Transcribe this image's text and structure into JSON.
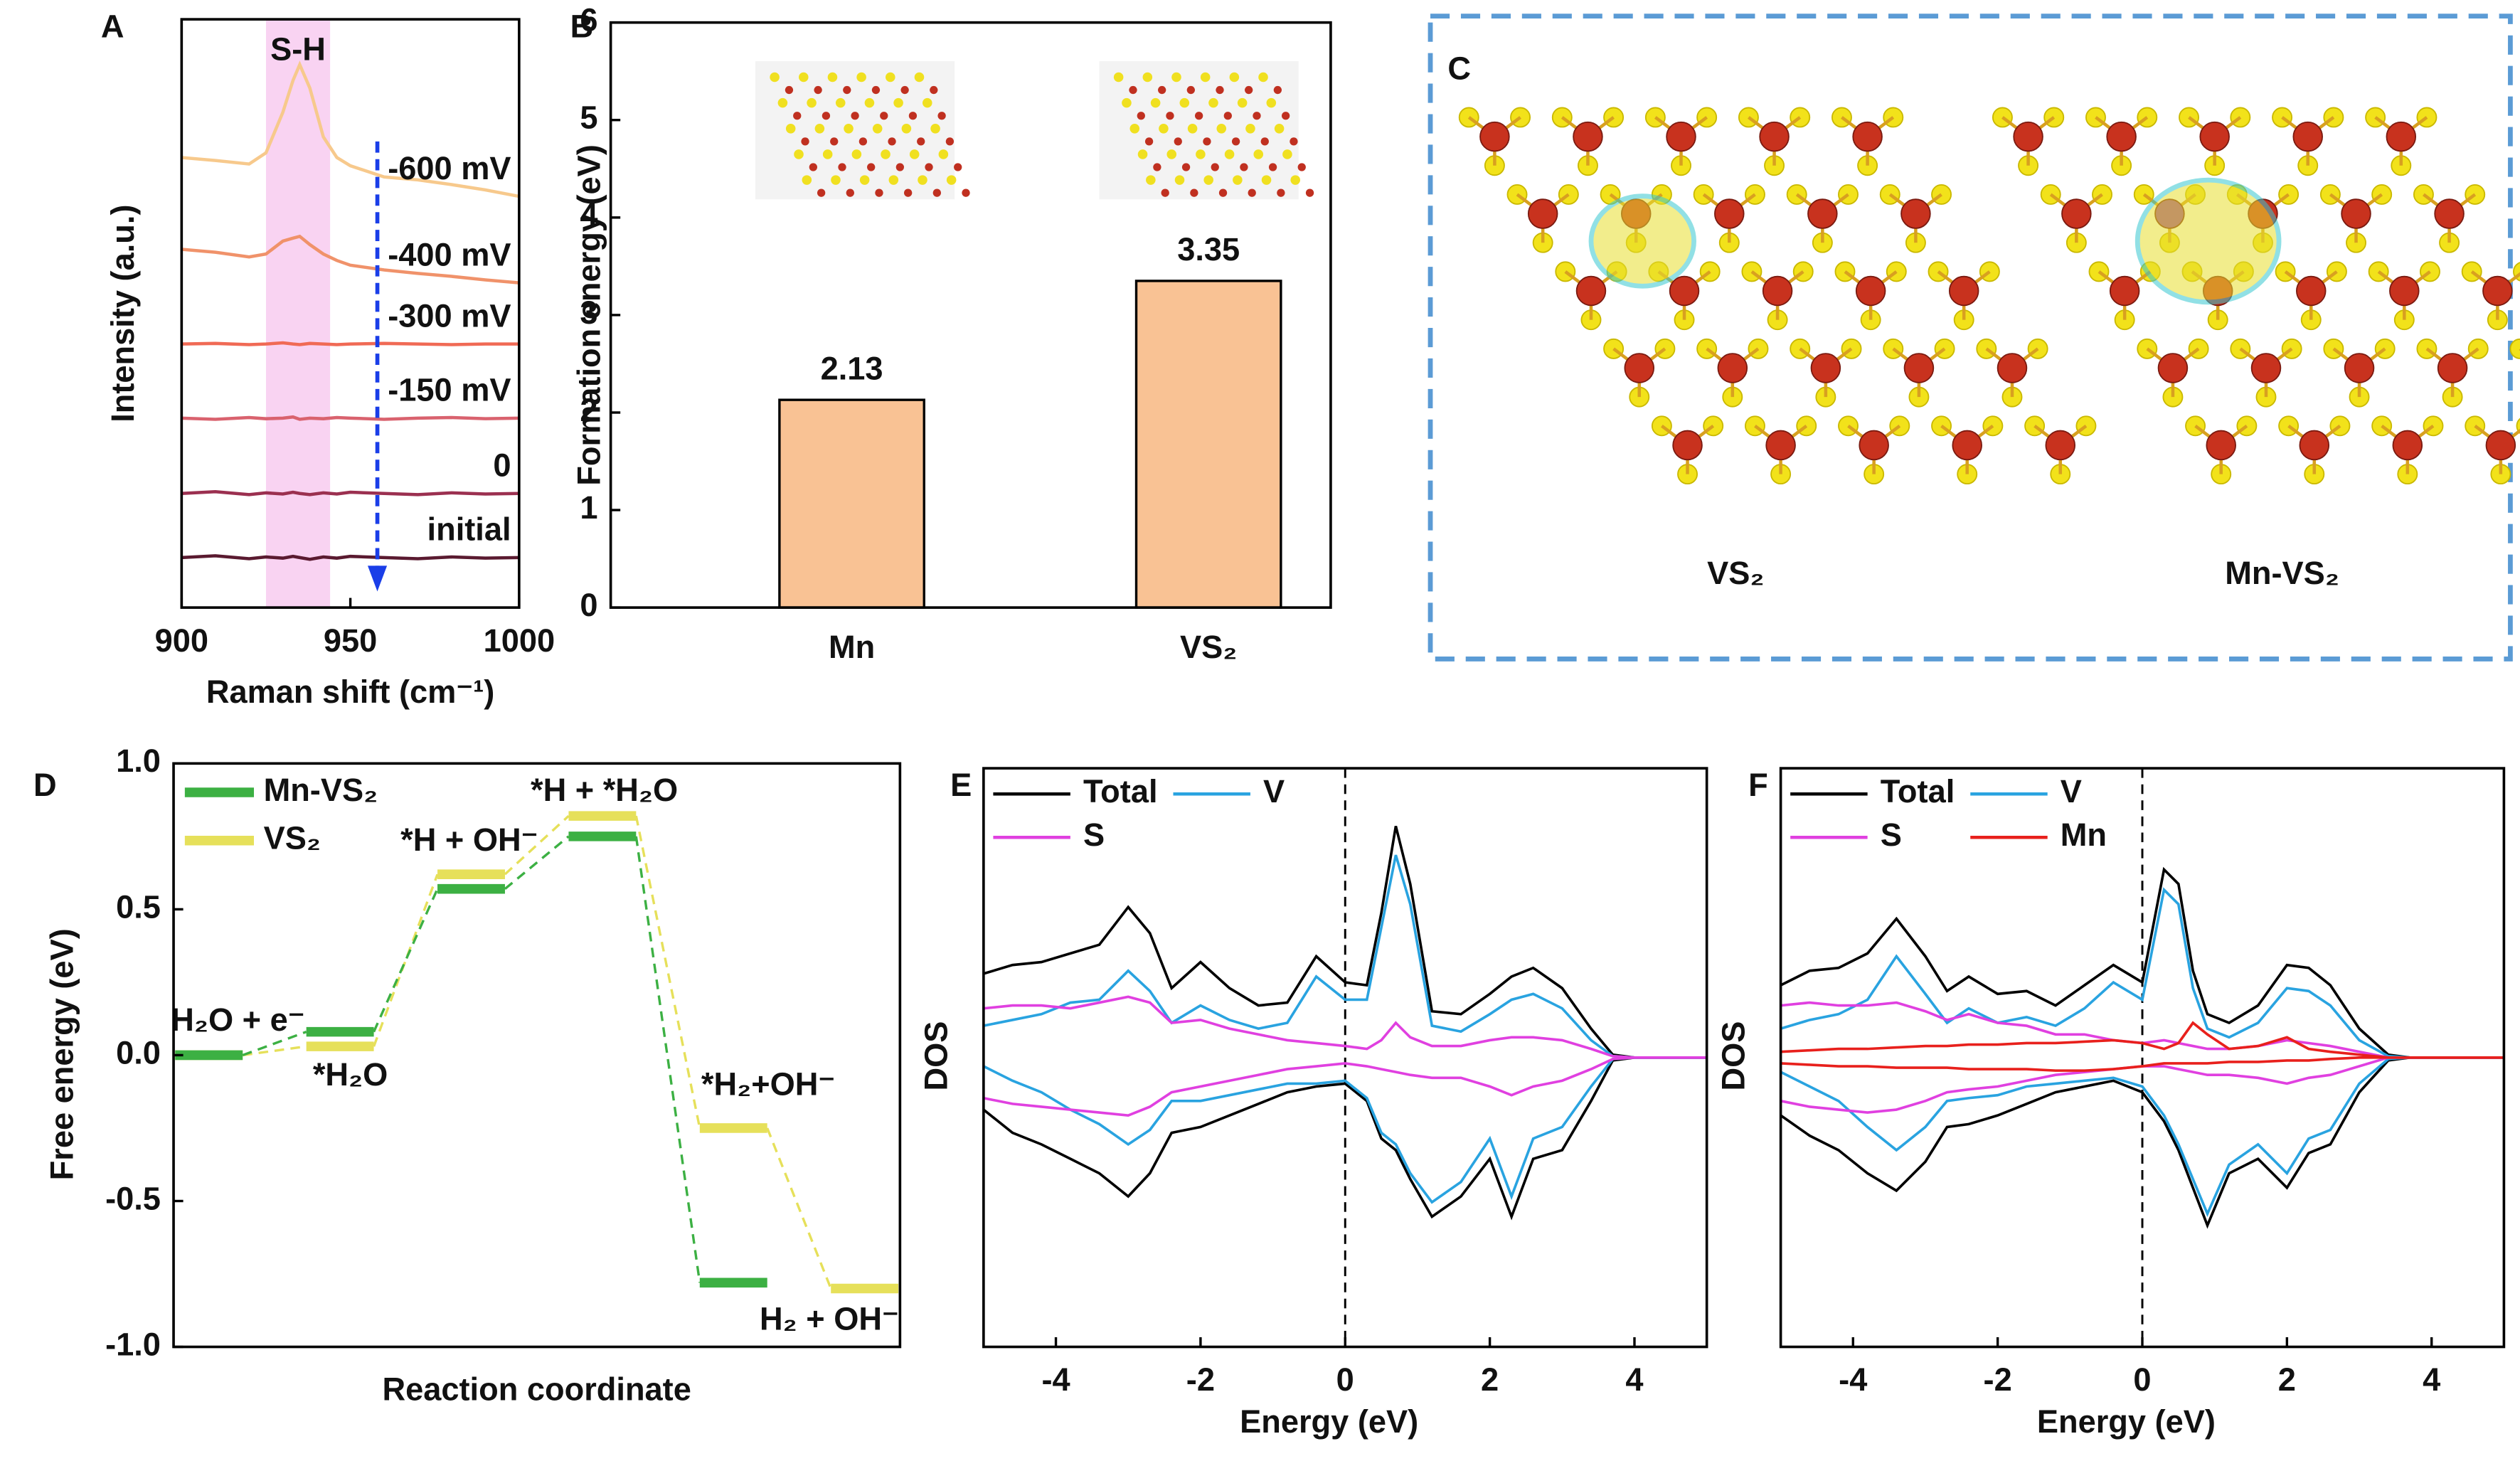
{
  "chart_data": [
    {
      "type": "line",
      "panel_label": "A",
      "xlabel": "Raman shift (cm⁻¹)",
      "ylabel": "Intensity (a.u.)",
      "annotation": "S-H",
      "highlight": [
        925,
        944
      ],
      "arrow_x": 958,
      "xlim": [
        900,
        1000
      ],
      "xticks": [
        900,
        950,
        1000
      ],
      "ylim": [
        0,
        10
      ],
      "x": [
        900,
        910,
        920,
        925,
        930,
        933,
        935,
        938,
        942,
        946,
        950,
        960,
        970,
        980,
        990,
        1000
      ],
      "series": [
        {
          "name": "-600 mV",
          "color": "#f7c98c",
          "values": [
            7.65,
            7.6,
            7.54,
            7.73,
            8.42,
            8.96,
            9.23,
            8.83,
            8.0,
            7.65,
            7.51,
            7.32,
            7.27,
            7.19,
            7.1,
            6.99
          ]
        },
        {
          "name": "-400 mV",
          "color": "#f0926a",
          "values": [
            6.09,
            6.04,
            5.96,
            6.01,
            6.23,
            6.28,
            6.31,
            6.17,
            6.01,
            5.9,
            5.82,
            5.74,
            5.68,
            5.63,
            5.57,
            5.52
          ]
        },
        {
          "name": "-300 mV",
          "color": "#f06a55",
          "values": [
            4.48,
            4.49,
            4.47,
            4.48,
            4.5,
            4.48,
            4.47,
            4.49,
            4.48,
            4.47,
            4.48,
            4.49,
            4.48,
            4.47,
            4.48,
            4.48
          ]
        },
        {
          "name": "-150 mV",
          "color": "#d9626e",
          "values": [
            3.22,
            3.2,
            3.23,
            3.21,
            3.22,
            3.24,
            3.2,
            3.22,
            3.21,
            3.23,
            3.22,
            3.2,
            3.22,
            3.23,
            3.21,
            3.22
          ]
        },
        {
          "name": "0",
          "color": "#9b3050",
          "values": [
            1.94,
            1.97,
            1.92,
            1.95,
            1.93,
            1.96,
            1.94,
            1.92,
            1.95,
            1.93,
            1.96,
            1.94,
            1.92,
            1.95,
            1.93,
            1.94
          ]
        },
        {
          "name": "initial",
          "color": "#5a1a30",
          "values": [
            0.85,
            0.88,
            0.83,
            0.86,
            0.84,
            0.87,
            0.85,
            0.82,
            0.86,
            0.84,
            0.87,
            0.85,
            0.83,
            0.86,
            0.84,
            0.85
          ]
        }
      ]
    },
    {
      "type": "bar",
      "panel_label": "B",
      "ylabel": "Formation energy (eV)",
      "categories": [
        "Mn",
        "VS₂"
      ],
      "values": [
        2.13,
        3.35
      ],
      "color": "#f9c294",
      "ylim": [
        0,
        6
      ],
      "yticks": [
        0,
        1,
        2,
        3,
        4,
        5,
        6
      ]
    },
    {
      "type": "energy",
      "panel_label": "D",
      "xlabel": "Reaction coordinate",
      "ylabel": "Free energy (eV)",
      "categories": [
        "H₂O + e⁻",
        "*H₂O",
        "*H + OH⁻",
        "*H + *H₂O",
        "*H₂+OH⁻",
        "H₂ + OH⁻"
      ],
      "ylim": [
        -1,
        1
      ],
      "yticks": [
        {
          "value": -1,
          "label": "-1.0"
        },
        -0.5,
        {
          "value": 0,
          "label": "0.0"
        },
        0.5,
        {
          "value": 1,
          "label": "1.0"
        }
      ],
      "series": [
        {
          "name": "Mn-VS₂",
          "color": "#3cb043",
          "values": [
            0,
            0.08,
            0.57,
            0.75,
            -0.78,
            null
          ]
        },
        {
          "name": "VS₂",
          "color": "#e6e05a",
          "values": [
            0,
            0.03,
            0.62,
            0.82,
            -0.25,
            -0.8
          ]
        }
      ]
    },
    {
      "type": "dos",
      "panel_label": "E",
      "xlabel": "Energy (eV)",
      "ylabel": "DOS",
      "vline": 0,
      "xlim": [
        -5,
        5
      ],
      "xticks": [
        -4,
        -2,
        0,
        2,
        4
      ],
      "ylim": [
        -10,
        10
      ],
      "x": [
        -5,
        -4.6,
        -4.2,
        -3.8,
        -3.4,
        -3,
        -2.7,
        -2.4,
        -2,
        -1.6,
        -1.2,
        -0.8,
        -0.4,
        0,
        0.3,
        0.5,
        0.7,
        0.9,
        1.2,
        1.6,
        2,
        2.3,
        2.6,
        3,
        3.4,
        3.7,
        4,
        5
      ],
      "series": [
        {
          "name": "Total",
          "color": "#000000",
          "values": [
            2.9,
            3.2,
            3.3,
            3.6,
            3.9,
            5.2,
            4.3,
            2.4,
            3.3,
            2.4,
            1.8,
            1.9,
            3.5,
            2.6,
            2.5,
            5.0,
            8.0,
            6.0,
            1.6,
            1.5,
            2.2,
            2.8,
            3.1,
            2.4,
            1.0,
            0.1,
            0,
            0
          ],
          "values_down": [
            -1.8,
            -2.6,
            -3.0,
            -3.5,
            -4.0,
            -4.8,
            -4.0,
            -2.6,
            -2.4,
            -2.0,
            -1.6,
            -1.2,
            -1.0,
            -0.9,
            -1.5,
            -2.8,
            -3.2,
            -4.2,
            -5.5,
            -4.8,
            -3.5,
            -5.5,
            -3.5,
            -3.2,
            -1.5,
            -0.1,
            0,
            0
          ]
        },
        {
          "name": "V",
          "color": "#29a3e0",
          "values": [
            1.1,
            1.3,
            1.5,
            1.9,
            2.0,
            3.0,
            2.3,
            1.2,
            1.8,
            1.3,
            1.0,
            1.2,
            2.8,
            2.0,
            2.0,
            4.5,
            7.0,
            5.3,
            1.1,
            0.9,
            1.5,
            2.0,
            2.2,
            1.7,
            0.6,
            0.05,
            0,
            0
          ],
          "values_down": [
            -0.3,
            -0.8,
            -1.2,
            -1.8,
            -2.3,
            -3.0,
            -2.5,
            -1.5,
            -1.5,
            -1.3,
            -1.1,
            -0.9,
            -0.9,
            -0.8,
            -1.4,
            -2.6,
            -3.0,
            -4.0,
            -5.0,
            -4.3,
            -2.8,
            -4.8,
            -2.8,
            -2.4,
            -1.0,
            -0.05,
            0,
            0
          ]
        },
        {
          "name": "S",
          "color": "#e040e0",
          "values": [
            1.7,
            1.8,
            1.8,
            1.7,
            1.9,
            2.1,
            1.9,
            1.2,
            1.3,
            1.0,
            0.8,
            0.6,
            0.5,
            0.4,
            0.3,
            0.6,
            1.2,
            0.7,
            0.4,
            0.4,
            0.6,
            0.7,
            0.7,
            0.6,
            0.3,
            0.05,
            0,
            0
          ],
          "values_down": [
            -1.4,
            -1.6,
            -1.7,
            -1.8,
            -1.9,
            -2.0,
            -1.7,
            -1.2,
            -1.0,
            -0.8,
            -0.6,
            -0.4,
            -0.3,
            -0.2,
            -0.3,
            -0.4,
            -0.5,
            -0.6,
            -0.7,
            -0.7,
            -1.0,
            -1.3,
            -1.0,
            -0.8,
            -0.4,
            -0.05,
            0,
            0
          ]
        }
      ]
    },
    {
      "type": "dos",
      "panel_label": "F",
      "xlabel": "Energy (eV)",
      "ylabel": "DOS",
      "vline": 0,
      "xlim": [
        -5,
        5
      ],
      "xticks": [
        -4,
        -2,
        0,
        2,
        4
      ],
      "ylim": [
        -10,
        10
      ],
      "x": [
        -5,
        -4.6,
        -4.2,
        -3.8,
        -3.4,
        -3,
        -2.7,
        -2.4,
        -2,
        -1.6,
        -1.2,
        -0.8,
        -0.4,
        0,
        0.3,
        0.5,
        0.7,
        0.9,
        1.2,
        1.6,
        2,
        2.3,
        2.6,
        3,
        3.4,
        3.7,
        4,
        5
      ],
      "series": [
        {
          "name": "Total",
          "color": "#000000",
          "values": [
            2.5,
            3.0,
            3.1,
            3.6,
            4.8,
            3.5,
            2.3,
            2.8,
            2.2,
            2.3,
            1.8,
            2.5,
            3.2,
            2.6,
            6.5,
            6.0,
            3.0,
            1.5,
            1.2,
            1.8,
            3.2,
            3.1,
            2.5,
            1.0,
            0.1,
            0,
            0,
            0
          ],
          "values_down": [
            -2.0,
            -2.7,
            -3.2,
            -4.0,
            -4.6,
            -3.6,
            -2.4,
            -2.3,
            -2.0,
            -1.6,
            -1.2,
            -1.0,
            -0.8,
            -1.2,
            -2.2,
            -3.2,
            -4.5,
            -5.8,
            -4.0,
            -3.5,
            -4.5,
            -3.3,
            -3.0,
            -1.2,
            -0.1,
            0,
            0,
            0
          ]
        },
        {
          "name": "V",
          "color": "#29a3e0",
          "values": [
            1.0,
            1.3,
            1.5,
            2.0,
            3.5,
            2.2,
            1.2,
            1.7,
            1.2,
            1.4,
            1.1,
            1.7,
            2.6,
            2.0,
            5.8,
            5.3,
            2.4,
            1.0,
            0.7,
            1.2,
            2.4,
            2.3,
            1.8,
            0.6,
            0.05,
            0,
            0,
            0
          ],
          "values_down": [
            -0.5,
            -1.0,
            -1.5,
            -2.4,
            -3.2,
            -2.4,
            -1.5,
            -1.4,
            -1.3,
            -1.0,
            -0.9,
            -0.8,
            -0.7,
            -1.0,
            -2.0,
            -3.0,
            -4.2,
            -5.4,
            -3.7,
            -3.0,
            -4.0,
            -2.8,
            -2.5,
            -0.9,
            -0.05,
            0,
            0,
            0
          ]
        },
        {
          "name": "S",
          "color": "#e040e0",
          "values": [
            1.8,
            1.9,
            1.8,
            1.8,
            1.9,
            1.6,
            1.3,
            1.5,
            1.2,
            1.1,
            0.8,
            0.8,
            0.6,
            0.5,
            0.6,
            0.5,
            0.4,
            0.3,
            0.3,
            0.4,
            0.6,
            0.5,
            0.4,
            0.2,
            0,
            0,
            0,
            0
          ],
          "values_down": [
            -1.5,
            -1.7,
            -1.8,
            -1.9,
            -1.8,
            -1.5,
            -1.2,
            -1.1,
            -1.0,
            -0.8,
            -0.6,
            -0.5,
            -0.4,
            -0.3,
            -0.3,
            -0.4,
            -0.5,
            -0.6,
            -0.6,
            -0.7,
            -0.9,
            -0.7,
            -0.6,
            -0.3,
            0,
            0,
            0,
            0
          ]
        },
        {
          "name": "Mn",
          "color": "#e8201c",
          "values": [
            0.2,
            0.25,
            0.3,
            0.3,
            0.35,
            0.4,
            0.4,
            0.45,
            0.45,
            0.5,
            0.5,
            0.55,
            0.6,
            0.5,
            0.3,
            0.5,
            1.2,
            0.8,
            0.3,
            0.4,
            0.7,
            0.3,
            0.2,
            0.1,
            0,
            0,
            0,
            0
          ],
          "values_down": [
            -0.2,
            -0.25,
            -0.3,
            -0.3,
            -0.35,
            -0.35,
            -0.35,
            -0.4,
            -0.4,
            -0.4,
            -0.45,
            -0.45,
            -0.4,
            -0.3,
            -0.2,
            -0.2,
            -0.2,
            -0.2,
            -0.15,
            -0.15,
            -0.1,
            -0.1,
            -0.05,
            0,
            0,
            0,
            0,
            0
          ]
        }
      ]
    }
  ],
  "image_panel": {
    "panel_label": "C",
    "structures": [
      "VS₂",
      "Mn-VS₂"
    ]
  }
}
